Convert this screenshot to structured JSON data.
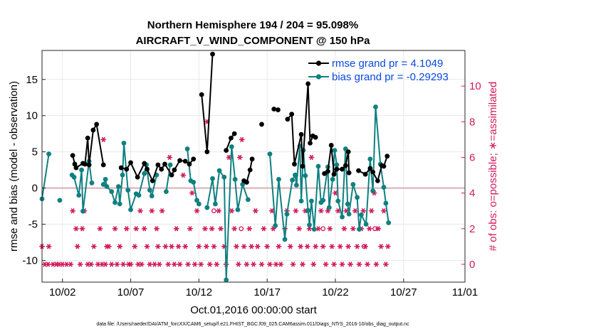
{
  "chart_data": {
    "type": "scatter",
    "title": "Northern Hemisphere 194 / 204 = 95.098%",
    "subtitle": "AIRCRAFT_V_WIND_COMPONENT @ 150 hPa",
    "xlabel": "Oct.01,2016 00:00:00 start",
    "ylabel": "rmse and bias (model - observation)",
    "y2label": "# of obs: o=possible; ∗=assimilated",
    "xlim": [
      0.5,
      31.5
    ],
    "ylim": [
      -13,
      19
    ],
    "y2lim": [
      -1,
      12
    ],
    "x_ticks": [
      {
        "value": 2,
        "label": "10/02"
      },
      {
        "value": 7,
        "label": "10/07"
      },
      {
        "value": 12,
        "label": "10/12"
      },
      {
        "value": 17,
        "label": "10/17"
      },
      {
        "value": 22,
        "label": "10/22"
      },
      {
        "value": 27,
        "label": "10/27"
      },
      {
        "value": 32,
        "label": "11/01"
      }
    ],
    "y_ticks": [
      -10,
      -5,
      0,
      5,
      10,
      15
    ],
    "y2_ticks": [
      0,
      2,
      4,
      6,
      8,
      10
    ],
    "colors": {
      "rmse": "#000000",
      "bias": "#0f8080",
      "obs": "#d11a5a",
      "zero": "#d9aeb8",
      "grid": "#e8e8e8",
      "legend_text": "#0a48e0"
    },
    "series": [
      {
        "name": "rmse grand pr = 4.1049",
        "points": [
          [
            2.75,
            4.5
          ],
          [
            2.9,
            3.3
          ],
          [
            3.0,
            2.8
          ],
          [
            3.5,
            3.4
          ],
          [
            3.65,
            3.3
          ],
          [
            3.85,
            6.9
          ],
          [
            3.95,
            3.2
          ],
          [
            4.25,
            8.0
          ],
          [
            4.5,
            8.8
          ],
          [
            5.0,
            3.2
          ],
          [
            6.3,
            2.8
          ],
          [
            6.7,
            2.6
          ],
          [
            7.0,
            3.5
          ],
          [
            7.5,
            1.5
          ],
          [
            8.0,
            3.4
          ],
          [
            8.2,
            2.6
          ],
          [
            8.6,
            1.0
          ],
          [
            9.0,
            3.2
          ],
          [
            9.25,
            2.6
          ],
          [
            9.5,
            3.3
          ],
          [
            10.0,
            1.8
          ],
          [
            10.2,
            2.5
          ],
          [
            10.6,
            3.8
          ],
          [
            11.0,
            3.7
          ],
          [
            11.3,
            3.3
          ],
          [
            11.6,
            4.0
          ],
          [
            12.2,
            12.9
          ],
          [
            12.6,
            5.0
          ],
          [
            13.0,
            18.5
          ],
          [
            14.0,
            5.2
          ],
          [
            14.35,
            6.9
          ],
          [
            14.6,
            7.5
          ],
          [
            15.3,
            1.0
          ],
          [
            15.5,
            0.8
          ],
          [
            15.75,
            2.5
          ],
          [
            15.9,
            4.0
          ],
          [
            16.6,
            8.8
          ],
          [
            17.5,
            10.9
          ],
          [
            17.8,
            10.8
          ],
          [
            18.5,
            9.5
          ],
          [
            18.8,
            10.2
          ],
          [
            19.0,
            3.3
          ],
          [
            19.5,
            7.4
          ],
          [
            19.6,
            3.0
          ],
          [
            20.0,
            14.4
          ],
          [
            20.15,
            6.2
          ],
          [
            20.35,
            7.2
          ],
          [
            20.55,
            7.0
          ],
          [
            21.2,
            2.0
          ],
          [
            21.45,
            2.3
          ],
          [
            21.7,
            5.9
          ],
          [
            21.9,
            1.9
          ],
          [
            22.1,
            2.6
          ],
          [
            22.5,
            2.6
          ],
          [
            22.75,
            3.1
          ],
          [
            22.95,
            5.0
          ],
          [
            23.0,
            2.1
          ],
          [
            23.7,
            2.4
          ],
          [
            24.2,
            1.9
          ],
          [
            24.55,
            2.7
          ],
          [
            24.75,
            2.2
          ],
          [
            25.1,
            1.0
          ],
          [
            25.4,
            3.1
          ],
          [
            25.55,
            3.0
          ],
          [
            25.8,
            4.4
          ]
        ]
      },
      {
        "name": "bias grand pr = -0.29293",
        "points": [
          [
            0.5,
            -1.5
          ],
          [
            1.0,
            4.7
          ],
          [
            1.8,
            -1.7
          ],
          [
            2.7,
            1.8
          ],
          [
            2.85,
            1.5
          ],
          [
            3.2,
            -1.0
          ],
          [
            3.4,
            2.5
          ],
          [
            3.5,
            -3.2
          ],
          [
            3.95,
            3.7
          ],
          [
            4.15,
            0.7
          ],
          [
            5.0,
            0.5
          ],
          [
            5.15,
            1.2
          ],
          [
            5.25,
            0.2
          ],
          [
            5.6,
            -0.5
          ],
          [
            5.85,
            -2.0
          ],
          [
            6.1,
            0.2
          ],
          [
            6.2,
            -2.2
          ],
          [
            6.4,
            1.8
          ],
          [
            6.5,
            6.2
          ],
          [
            6.8,
            -0.3
          ],
          [
            7.0,
            -3.0
          ],
          [
            7.4,
            -0.8
          ],
          [
            7.6,
            -1.0
          ],
          [
            8.0,
            2.0
          ],
          [
            8.15,
            3.2
          ],
          [
            8.4,
            -0.3
          ],
          [
            8.55,
            -1.1
          ],
          [
            8.9,
            1.8
          ],
          [
            9.6,
            -0.5
          ],
          [
            9.9,
            3.2
          ],
          [
            11.15,
            5.4
          ],
          [
            11.4,
            1.0
          ],
          [
            11.6,
            0.8
          ],
          [
            11.85,
            -1.7
          ],
          [
            12.0,
            -2.2
          ],
          [
            12.6,
            -2.7
          ],
          [
            13.0,
            1.3
          ],
          [
            13.2,
            -2.2
          ],
          [
            13.5,
            2.4
          ],
          [
            13.85,
            1.5
          ],
          [
            14.0,
            -12.7
          ],
          [
            14.4,
            5.7
          ],
          [
            14.65,
            1.2
          ],
          [
            14.85,
            -3.0
          ],
          [
            15.2,
            0.5
          ],
          [
            15.6,
            -1.6
          ],
          [
            17.2,
            4.7
          ],
          [
            17.6,
            -5.2
          ],
          [
            17.85,
            1.2
          ],
          [
            18.3,
            -7.1
          ],
          [
            18.45,
            -3.6
          ],
          [
            18.85,
            1.1
          ],
          [
            19.05,
            1.8
          ],
          [
            19.15,
            0.4
          ],
          [
            19.4,
            5.8
          ],
          [
            19.5,
            -1.8
          ],
          [
            19.65,
            5.2
          ],
          [
            19.8,
            1.7
          ],
          [
            20.0,
            -3.1
          ],
          [
            20.1,
            -5.1
          ],
          [
            20.25,
            -1.8
          ],
          [
            20.45,
            -5.7
          ],
          [
            20.75,
            3.0
          ],
          [
            20.95,
            -2.0
          ],
          [
            21.1,
            -1.7
          ],
          [
            21.45,
            2.9
          ],
          [
            21.55,
            -2.7
          ],
          [
            21.8,
            1.2
          ],
          [
            21.95,
            5.2
          ],
          [
            22.1,
            3.2
          ],
          [
            22.2,
            -1.8
          ],
          [
            22.5,
            -4.0
          ],
          [
            22.75,
            5.4
          ],
          [
            22.9,
            -2.2
          ],
          [
            23.0,
            -3.6
          ],
          [
            23.3,
            0.5
          ],
          [
            23.6,
            -1.3
          ],
          [
            23.75,
            -5.7
          ],
          [
            23.9,
            -3.7
          ],
          [
            24.25,
            -5.0
          ],
          [
            24.55,
            4.0
          ],
          [
            24.75,
            -0.4
          ],
          [
            24.95,
            11.2
          ],
          [
            25.3,
            3.3
          ],
          [
            25.55,
            0.1
          ],
          [
            25.7,
            -2.1
          ],
          [
            25.9,
            -4.8
          ]
        ]
      },
      {
        "name": "obs count (assimilated)",
        "points": [
          [
            0.5,
            1
          ],
          [
            0.7,
            0
          ],
          [
            0.95,
            0
          ],
          [
            1.0,
            1
          ],
          [
            1.3,
            0
          ],
          [
            1.55,
            0
          ],
          [
            1.75,
            0
          ],
          [
            2.0,
            0
          ],
          [
            2.3,
            0
          ],
          [
            2.6,
            0
          ],
          [
            2.75,
            3
          ],
          [
            3.0,
            2
          ],
          [
            3.1,
            1
          ],
          [
            3.3,
            0
          ],
          [
            3.45,
            2
          ],
          [
            3.6,
            3
          ],
          [
            3.85,
            0
          ],
          [
            4.1,
            0
          ],
          [
            4.3,
            1
          ],
          [
            4.6,
            0
          ],
          [
            4.75,
            2
          ],
          [
            4.9,
            0
          ],
          [
            5.0,
            7
          ],
          [
            5.15,
            0
          ],
          [
            5.25,
            1
          ],
          [
            5.4,
            1
          ],
          [
            5.6,
            0
          ],
          [
            5.85,
            2
          ],
          [
            6.0,
            0
          ],
          [
            6.2,
            1
          ],
          [
            6.45,
            0
          ],
          [
            6.7,
            2
          ],
          [
            6.85,
            0
          ],
          [
            7.0,
            0
          ],
          [
            7.3,
            1
          ],
          [
            7.4,
            2
          ],
          [
            7.55,
            0
          ],
          [
            7.7,
            3
          ],
          [
            7.8,
            0
          ],
          [
            8.0,
            2
          ],
          [
            8.2,
            1
          ],
          [
            8.4,
            0
          ],
          [
            8.55,
            3
          ],
          [
            8.75,
            0
          ],
          [
            8.9,
            2
          ],
          [
            9.0,
            1
          ],
          [
            9.1,
            0
          ],
          [
            9.3,
            3
          ],
          [
            9.55,
            1
          ],
          [
            9.75,
            0
          ],
          [
            9.85,
            6
          ],
          [
            10.0,
            1
          ],
          [
            10.2,
            0
          ],
          [
            10.35,
            2
          ],
          [
            10.5,
            1
          ],
          [
            10.6,
            0
          ],
          [
            10.85,
            5
          ],
          [
            11.0,
            1
          ],
          [
            11.2,
            0
          ],
          [
            11.35,
            2
          ],
          [
            11.5,
            4
          ],
          [
            11.7,
            0
          ],
          [
            11.85,
            3
          ],
          [
            12.0,
            1
          ],
          [
            12.15,
            0
          ],
          [
            12.45,
            2
          ],
          [
            12.55,
            1
          ],
          [
            12.6,
            8
          ],
          [
            12.8,
            0
          ],
          [
            12.95,
            2
          ],
          [
            13.1,
            1
          ],
          [
            13.3,
            0
          ],
          [
            13.45,
            3
          ],
          [
            13.6,
            2
          ],
          [
            13.85,
            1
          ],
          [
            14.0,
            0
          ],
          [
            14.2,
            6
          ],
          [
            14.4,
            3
          ],
          [
            14.6,
            2
          ],
          [
            14.75,
            1
          ],
          [
            14.9,
            0
          ],
          [
            15.0,
            6
          ],
          [
            15.15,
            7
          ],
          [
            15.3,
            1
          ],
          [
            15.5,
            0
          ],
          [
            15.7,
            2
          ],
          [
            15.85,
            1
          ],
          [
            16.0,
            0
          ],
          [
            16.15,
            3
          ],
          [
            16.3,
            1
          ],
          [
            16.6,
            0
          ],
          [
            16.75,
            2
          ],
          [
            17.0,
            1
          ],
          [
            17.2,
            0
          ],
          [
            17.35,
            3
          ],
          [
            17.45,
            2
          ],
          [
            17.65,
            0
          ],
          [
            17.85,
            1
          ],
          [
            18.0,
            0
          ],
          [
            18.3,
            2
          ],
          [
            18.45,
            3
          ],
          [
            18.7,
            1
          ],
          [
            18.9,
            0
          ],
          [
            19.1,
            3
          ],
          [
            19.35,
            2
          ],
          [
            19.45,
            1
          ],
          [
            19.6,
            0
          ],
          [
            19.8,
            3
          ],
          [
            19.95,
            1
          ],
          [
            20.1,
            2
          ],
          [
            20.25,
            6
          ],
          [
            20.4,
            0
          ],
          [
            20.55,
            1
          ],
          [
            20.75,
            2
          ],
          [
            20.95,
            3
          ],
          [
            21.1,
            1
          ],
          [
            21.3,
            0
          ],
          [
            21.45,
            3
          ],
          [
            21.6,
            2
          ],
          [
            21.75,
            1
          ],
          [
            21.9,
            0
          ],
          [
            22.0,
            4
          ],
          [
            22.2,
            3
          ],
          [
            22.35,
            1
          ],
          [
            22.5,
            0
          ],
          [
            22.65,
            2
          ],
          [
            22.8,
            3
          ],
          [
            22.95,
            1
          ],
          [
            23.1,
            0
          ],
          [
            23.3,
            2
          ],
          [
            23.45,
            3
          ],
          [
            23.6,
            1
          ],
          [
            23.75,
            0
          ],
          [
            23.9,
            2
          ],
          [
            24.05,
            3
          ],
          [
            24.2,
            1
          ],
          [
            24.35,
            0
          ],
          [
            24.5,
            2
          ],
          [
            24.65,
            3
          ],
          [
            24.85,
            4
          ],
          [
            25.0,
            0
          ],
          [
            25.15,
            2
          ],
          [
            25.35,
            1
          ],
          [
            25.55,
            3
          ],
          [
            25.7,
            0
          ],
          [
            25.85,
            1
          ]
        ]
      },
      {
        "name": "obs count (possible)",
        "points": [
          [
            13.1,
            3
          ],
          [
            15.1,
            2
          ],
          [
            19.1,
            5
          ],
          [
            21.1,
            2
          ],
          [
            24.1,
            1
          ],
          [
            24.9,
            2
          ]
        ]
      }
    ]
  },
  "footer": {
    "datafile": "data file: /Users/raeder/DAI/ATM_forcXX/CAM6_setup/f.e21.FHIST_BGC.f09_025.CAM6assim.011/Diags_NTrS_2016-10/obs_diag_output.nc"
  }
}
